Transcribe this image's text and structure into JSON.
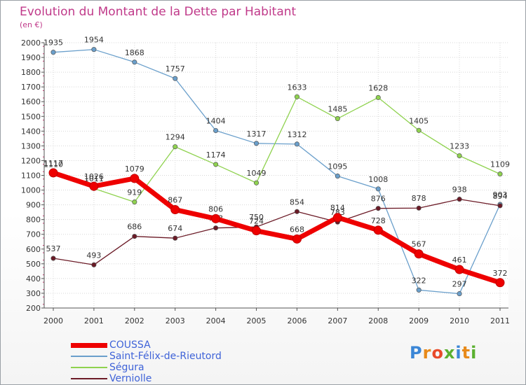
{
  "title": "Evolution du Montant de la Dette par Habitant",
  "subtitle": "(en €)",
  "logo_text": "Proxiti",
  "chart_data": {
    "type": "line",
    "title": "Evolution du Montant de la Dette par Habitant",
    "subtitle": "(en €)",
    "x": [
      "2000",
      "2001",
      "2002",
      "2003",
      "2004",
      "2005",
      "2006",
      "2007",
      "2008",
      "2009",
      "2010",
      "2011"
    ],
    "ylim": [
      200,
      2000
    ],
    "yticks": [
      200,
      300,
      400,
      500,
      600,
      700,
      800,
      900,
      1000,
      1100,
      1200,
      1300,
      1400,
      1500,
      1600,
      1700,
      1800,
      1900,
      2000
    ],
    "grid": true,
    "legend_position": "bottom-left",
    "series": [
      {
        "name": "COUSSA",
        "color": "#ee0000",
        "values": [
          1117,
          1026,
          1079,
          867,
          806,
          724,
          668,
          814,
          728,
          567,
          461,
          372
        ]
      },
      {
        "name": "Saint-Félix-de-Rieutord",
        "color": "#6a9fcb",
        "values": [
          1935,
          1954,
          1868,
          1757,
          1404,
          1317,
          1312,
          1095,
          1008,
          322,
          297,
          903
        ]
      },
      {
        "name": "Ségura",
        "color": "#8fd24f",
        "values": [
          1110,
          1011,
          919,
          1294,
          1174,
          1049,
          1633,
          1485,
          1628,
          1405,
          1233,
          1109
        ]
      },
      {
        "name": "Verniolle",
        "color": "#6b1a26",
        "values": [
          537,
          493,
          686,
          674,
          743,
          750,
          854,
          783,
          876,
          878,
          938,
          894
        ]
      }
    ]
  }
}
